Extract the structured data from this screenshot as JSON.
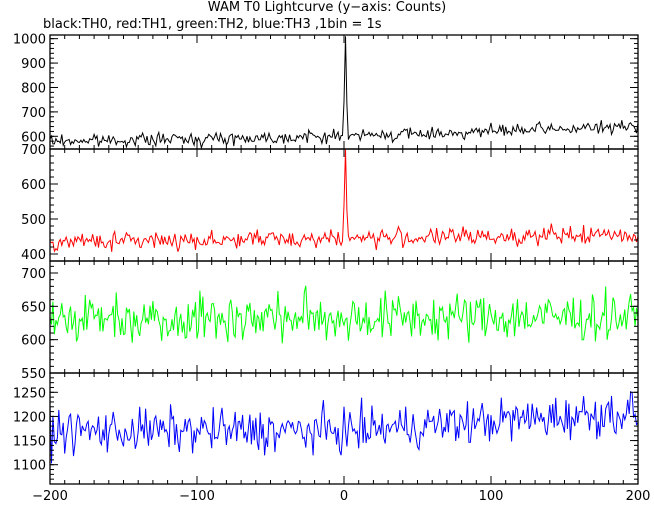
{
  "title": "WAM T0 Lightcurve (y−axis: Counts)",
  "subtitle": "black:TH0, red:TH1, green:TH2, blue:TH3 ,1bin = 1s",
  "chart_data": {
    "type": "line",
    "x": {
      "range": [
        -200,
        200
      ],
      "ticks": [
        -200,
        -100,
        0,
        100,
        200
      ],
      "tick_labels": [
        "−200",
        "−100",
        "0",
        "100",
        "200"
      ]
    },
    "panels": [
      {
        "name": "TH0",
        "color": "#000000",
        "ylim": [
          548,
          1015
        ],
        "ticks": [
          600,
          700,
          800,
          900,
          1000
        ],
        "tick_labels": [
          "600",
          "700",
          "800",
          "900",
          "1000"
        ],
        "baseline": [
          [
            -200,
            580
          ],
          [
            0,
            600
          ],
          [
            200,
            640
          ]
        ],
        "noise": 18,
        "spike": {
          "x": 1,
          "peak": 1010
        }
      },
      {
        "name": "TH1",
        "color": "#ff0000",
        "ylim": [
          380,
          700
        ],
        "ticks": [
          400,
          500,
          600,
          700
        ],
        "tick_labels": [
          "400",
          "500",
          "600",
          "700"
        ],
        "baseline": [
          [
            -200,
            435
          ],
          [
            0,
            445
          ],
          [
            200,
            455
          ]
        ],
        "noise": 18,
        "spike": {
          "x": 1,
          "peak": 700
        }
      },
      {
        "name": "TH2",
        "color": "#00ff00",
        "ylim": [
          550,
          718
        ],
        "ticks": [
          550,
          600,
          650,
          700
        ],
        "tick_labels": [
          "550",
          "600",
          "650",
          "700"
        ],
        "baseline": [
          [
            -200,
            633
          ],
          [
            0,
            633
          ],
          [
            200,
            635
          ]
        ],
        "noise": 26,
        "spike": null
      },
      {
        "name": "TH3",
        "color": "#0000ff",
        "ylim": [
          1060,
          1290
        ],
        "ticks": [
          1100,
          1150,
          1200,
          1250
        ],
        "tick_labels": [
          "1100",
          "1150",
          "1200",
          "1250"
        ],
        "baseline": [
          [
            -200,
            1170
          ],
          [
            0,
            1170
          ],
          [
            200,
            1210
          ]
        ],
        "noise": 32,
        "spike": null
      }
    ]
  }
}
